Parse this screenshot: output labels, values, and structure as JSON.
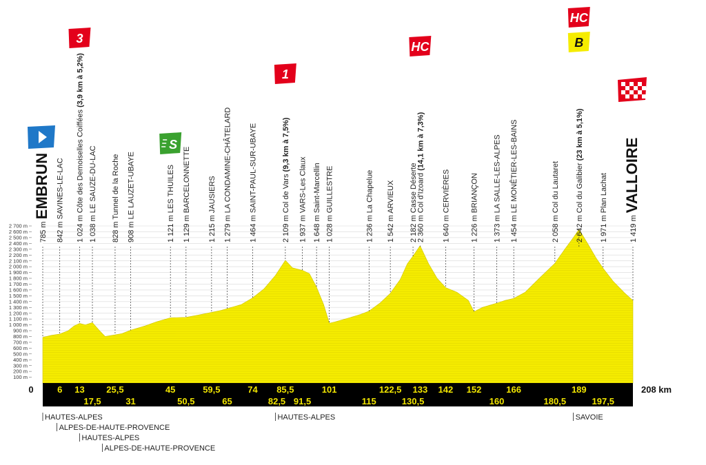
{
  "chart_data": {
    "type": "area",
    "title": "",
    "xlabel": "",
    "ylabel": "",
    "xlim": [
      0,
      208
    ],
    "ylim": [
      0,
      2700
    ],
    "x_unit": "km",
    "y_unit": "m",
    "fill_color": "#f5ec00",
    "band_color": "#000000",
    "yticks": [
      "100 m",
      "200 m",
      "300 m",
      "400 m",
      "500 m",
      "600 m",
      "700 m",
      "800 m",
      "900 m",
      "1 000 m",
      "1 100 m",
      "1 200 m",
      "1 300 m",
      "1 400 m",
      "1 500 m",
      "1 600 m",
      "1 700 m",
      "1 800 m",
      "1 900 m",
      "2 000 m",
      "2 100 m",
      "2 200 m",
      "2 300 m",
      "2 400 m",
      "2 500 m",
      "2 600 m",
      "2 700 m"
    ],
    "ytick_values": [
      100,
      200,
      300,
      400,
      500,
      600,
      700,
      800,
      900,
      1000,
      1100,
      1200,
      1300,
      1400,
      1500,
      1600,
      1700,
      1800,
      1900,
      2000,
      2100,
      2200,
      2300,
      2400,
      2500,
      2600,
      2700
    ],
    "profile": [
      [
        0,
        785
      ],
      [
        3,
        820
      ],
      [
        6,
        842
      ],
      [
        9,
        900
      ],
      [
        11,
        980
      ],
      [
        13,
        1024
      ],
      [
        15,
        1000
      ],
      [
        17.5,
        1038
      ],
      [
        20,
        900
      ],
      [
        22,
        800
      ],
      [
        25.5,
        828
      ],
      [
        28,
        850
      ],
      [
        31,
        908
      ],
      [
        36,
        980
      ],
      [
        40,
        1050
      ],
      [
        45,
        1121
      ],
      [
        50.5,
        1129
      ],
      [
        55,
        1170
      ],
      [
        59.5,
        1215
      ],
      [
        63,
        1250
      ],
      [
        65,
        1279
      ],
      [
        70,
        1350
      ],
      [
        74,
        1464
      ],
      [
        78,
        1620
      ],
      [
        82,
        1850
      ],
      [
        85.5,
        2109
      ],
      [
        88,
        1980
      ],
      [
        91.5,
        1937
      ],
      [
        94,
        1880
      ],
      [
        96.5,
        1648
      ],
      [
        99,
        1350
      ],
      [
        101,
        1028
      ],
      [
        103,
        1050
      ],
      [
        108,
        1120
      ],
      [
        112,
        1180
      ],
      [
        115,
        1236
      ],
      [
        119,
        1380
      ],
      [
        122.5,
        1542
      ],
      [
        126,
        1780
      ],
      [
        128.5,
        2050
      ],
      [
        130.5,
        2182
      ],
      [
        133,
        2360
      ],
      [
        136,
        2050
      ],
      [
        139,
        1800
      ],
      [
        142,
        1640
      ],
      [
        146,
        1560
      ],
      [
        150,
        1420
      ],
      [
        152,
        1226
      ],
      [
        155,
        1300
      ],
      [
        160,
        1373
      ],
      [
        163,
        1420
      ],
      [
        166,
        1454
      ],
      [
        170,
        1560
      ],
      [
        175,
        1800
      ],
      [
        180.5,
        2058
      ],
      [
        184,
        2300
      ],
      [
        187,
        2500
      ],
      [
        189,
        2642
      ],
      [
        192,
        2400
      ],
      [
        195,
        2150
      ],
      [
        197.5,
        1971
      ],
      [
        201,
        1750
      ],
      [
        205,
        1550
      ],
      [
        208,
        1419
      ]
    ],
    "km_top": [
      {
        "x": 6,
        "label": "6"
      },
      {
        "x": 13,
        "label": "13"
      },
      {
        "x": 25.5,
        "label": "25,5"
      },
      {
        "x": 45,
        "label": "45"
      },
      {
        "x": 59.5,
        "label": "59,5"
      },
      {
        "x": 74,
        "label": "74"
      },
      {
        "x": 85.5,
        "label": "85,5"
      },
      {
        "x": 101,
        "label": "101"
      },
      {
        "x": 122.5,
        "label": "122,5"
      },
      {
        "x": 133,
        "label": "133"
      },
      {
        "x": 142,
        "label": "142"
      },
      {
        "x": 152,
        "label": "152"
      },
      {
        "x": 166,
        "label": "166"
      },
      {
        "x": 189,
        "label": "189"
      }
    ],
    "km_bottom": [
      {
        "x": 17.5,
        "label": "17,5"
      },
      {
        "x": 31,
        "label": "31"
      },
      {
        "x": 50.5,
        "label": "50,5"
      },
      {
        "x": 65,
        "label": "65"
      },
      {
        "x": 82.5,
        "label": "82,5"
      },
      {
        "x": 91.5,
        "label": "91,5"
      },
      {
        "x": 115,
        "label": "115"
      },
      {
        "x": 130.5,
        "label": "130,5"
      },
      {
        "x": 160,
        "label": "160"
      },
      {
        "x": 180.5,
        "label": "180,5"
      },
      {
        "x": 197.5,
        "label": "197,5"
      }
    ],
    "km_start": "0",
    "km_end": "208 km",
    "waypoints": [
      {
        "x": 0,
        "alt": "785 m",
        "name": "EMBRUN",
        "kind": "big"
      },
      {
        "x": 6,
        "alt": "842 m",
        "name": "SAVINES-LE-LAC",
        "kind": "town"
      },
      {
        "x": 13,
        "alt": "1 024 m",
        "name": "Côte des Demoiselles Coiffées",
        "extra": "(3,9 km à 5,2%)",
        "kind": "climb",
        "cat": "3"
      },
      {
        "x": 17.5,
        "alt": "1 038 m",
        "name": "LE SAUZE-DU-LAC",
        "kind": "town"
      },
      {
        "x": 25.5,
        "alt": "828 m",
        "name": "Tunnel de la Roche",
        "kind": "place"
      },
      {
        "x": 31,
        "alt": "908 m",
        "name": "LE LAUZET-UBAYE",
        "kind": "town"
      },
      {
        "x": 45,
        "alt": "1 121 m",
        "name": "LES THUILES",
        "kind": "town",
        "sprint": true
      },
      {
        "x": 50.5,
        "alt": "1 129 m",
        "name": "BARCELONNETTE",
        "kind": "town"
      },
      {
        "x": 59.5,
        "alt": "1 215 m",
        "name": "JAUSIERS",
        "kind": "town"
      },
      {
        "x": 65,
        "alt": "1 279 m",
        "name": "LA CONDAMINE-CHÂTELARD",
        "kind": "town"
      },
      {
        "x": 74,
        "alt": "1 464 m",
        "name": "SAINT-PAUL-SUR-UBAYE",
        "kind": "town"
      },
      {
        "x": 85.5,
        "alt": "2 109 m",
        "name": "Col de Vars",
        "extra": "(9,3 km à 7,5%)",
        "kind": "climb",
        "cat": "1"
      },
      {
        "x": 91.5,
        "alt": "1 937 m",
        "name": "VARS-Les Claux",
        "kind": "town"
      },
      {
        "x": 96.5,
        "alt": "1 648 m",
        "name": "Saint-Marcellin",
        "kind": "place"
      },
      {
        "x": 101,
        "alt": "1 028 m",
        "name": "GUILLESTRE",
        "kind": "town"
      },
      {
        "x": 115,
        "alt": "1 236 m",
        "name": "La Chapelue",
        "kind": "place"
      },
      {
        "x": 122.5,
        "alt": "1 542 m",
        "name": "ARVIEUX",
        "kind": "town"
      },
      {
        "x": 130.5,
        "alt": "2 182 m",
        "name": "Casse Déserte",
        "kind": "place"
      },
      {
        "x": 133,
        "alt": "2 360 m",
        "name": "Col d'Izoard",
        "extra": "(14,1 km à 7,3%)",
        "kind": "climb",
        "cat": "HC"
      },
      {
        "x": 142,
        "alt": "1 640 m",
        "name": "CERVIÈRES",
        "kind": "town"
      },
      {
        "x": 152,
        "alt": "1 226 m",
        "name": "BRIANÇON",
        "kind": "town"
      },
      {
        "x": 160,
        "alt": "1 373 m",
        "name": "LA SALLE-LES-ALPES",
        "kind": "town"
      },
      {
        "x": 166,
        "alt": "1 454 m",
        "name": "LE MONÊTIER-LES-BAINS",
        "kind": "town"
      },
      {
        "x": 180.5,
        "alt": "2 058 m",
        "name": "Col du Lautaret",
        "kind": "place"
      },
      {
        "x": 189,
        "alt": "2 642 m",
        "name": "Col du Galibier",
        "extra": "(23 km à 5,1%)",
        "kind": "climb",
        "cat": "HC",
        "bonus": "B"
      },
      {
        "x": 197.5,
        "alt": "1 971 m",
        "name": "Plan Lachat",
        "kind": "place"
      },
      {
        "x": 208,
        "alt": "1 419 m",
        "name": "VALLOIRE",
        "kind": "big"
      }
    ],
    "regions": [
      {
        "x": 0,
        "row": 0,
        "label": "HAUTES-ALPES"
      },
      {
        "x": 5,
        "row": 1,
        "label": "ALPES-DE-HAUTE-PROVENCE"
      },
      {
        "x": 13,
        "row": 2,
        "label": "HAUTES-ALPES"
      },
      {
        "x": 21,
        "row": 3,
        "label": "ALPES-DE-HAUTE-PROVENCE"
      },
      {
        "x": 82,
        "row": 0,
        "label": "HAUTES-ALPES"
      },
      {
        "x": 187,
        "row": 0,
        "label": "SAVOIE"
      }
    ]
  }
}
